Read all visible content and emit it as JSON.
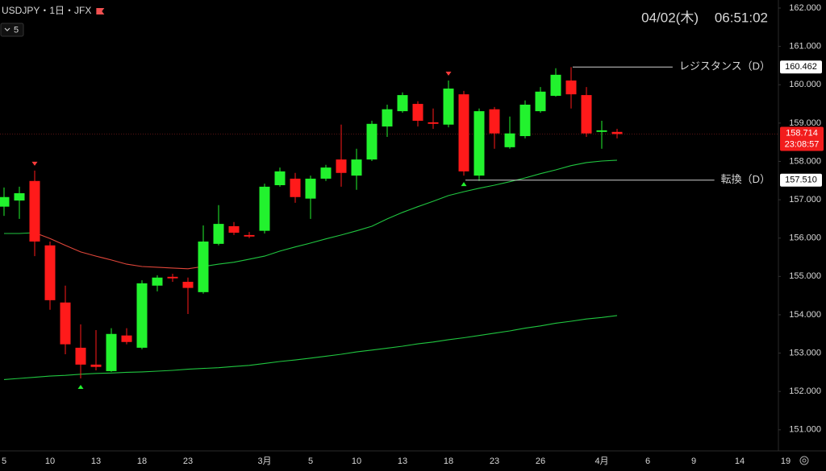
{
  "chart_data": {
    "type": "candlestick",
    "title": "USDJPY・1日・JFX",
    "interval_badge": "5",
    "date": "04/02(木)",
    "time": "06:51:02",
    "categories": [
      "5",
      null,
      null,
      "10",
      null,
      null,
      "13",
      null,
      null,
      "18",
      null,
      null,
      "23",
      null,
      null,
      null,
      null,
      "3月",
      null,
      null,
      "5",
      null,
      null,
      "10",
      null,
      null,
      "13",
      null,
      null,
      "18",
      null,
      null,
      "23",
      null,
      null,
      "26",
      null,
      null,
      null,
      "4月",
      null,
      null,
      "6",
      null,
      null,
      "9",
      null,
      null,
      "14",
      null,
      null,
      "19"
    ],
    "open": [
      156.82,
      156.98,
      157.49,
      155.81,
      154.32,
      153.14,
      152.7,
      152.53,
      153.46,
      153.14,
      154.76,
      154.99,
      154.86,
      154.59,
      155.85,
      156.31,
      156.08,
      156.19,
      157.38,
      157.55,
      157.03,
      157.55,
      158.05,
      157.63,
      158.05,
      158.91,
      159.31,
      159.5,
      159.02,
      158.96,
      159.75,
      157.63,
      159.36,
      158.37,
      158.66,
      159.31,
      159.71,
      160.11,
      159.73,
      158.77,
      158.77,
      null,
      null,
      null,
      null,
      null,
      null,
      null,
      null,
      null,
      null,
      null
    ],
    "high": [
      157.32,
      157.34,
      157.76,
      155.91,
      154.76,
      153.75,
      153.6,
      153.65,
      153.65,
      154.9,
      155.03,
      155.07,
      154.97,
      156.33,
      156.86,
      156.42,
      156.16,
      157.42,
      157.84,
      157.7,
      157.63,
      157.91,
      158.96,
      158.33,
      159.06,
      159.48,
      159.8,
      159.57,
      159.38,
      160.11,
      159.84,
      159.38,
      159.42,
      159.17,
      159.59,
      159.94,
      160.43,
      160.46,
      159.94,
      159.06,
      158.85,
      null,
      null,
      null,
      null,
      null,
      null,
      null,
      null,
      null,
      null,
      null
    ],
    "low": [
      156.58,
      156.5,
      155.53,
      154.13,
      152.97,
      152.34,
      152.55,
      152.51,
      153.23,
      153.1,
      154.61,
      154.86,
      154.02,
      154.55,
      155.81,
      156.08,
      156.0,
      156.12,
      157.34,
      156.92,
      156.5,
      157.49,
      157.34,
      157.26,
      158.01,
      158.64,
      159.27,
      158.91,
      158.85,
      158.89,
      157.63,
      157.49,
      158.33,
      158.33,
      158.6,
      159.27,
      159.69,
      159.38,
      158.64,
      158.33,
      158.6,
      null,
      null,
      null,
      null,
      null,
      null,
      null,
      null,
      null,
      null,
      null
    ],
    "close": [
      157.07,
      157.17,
      155.91,
      154.38,
      153.23,
      152.7,
      152.64,
      153.5,
      153.29,
      154.82,
      154.97,
      154.95,
      154.7,
      155.91,
      156.37,
      156.14,
      156.04,
      157.34,
      157.74,
      157.07,
      157.55,
      157.84,
      157.7,
      158.05,
      158.98,
      159.36,
      159.73,
      159.06,
      158.98,
      159.9,
      157.74,
      159.31,
      158.73,
      158.73,
      159.48,
      159.82,
      160.26,
      159.75,
      158.73,
      158.81,
      158.714,
      null,
      null,
      null,
      null,
      null,
      null,
      null,
      null,
      null,
      null,
      null
    ],
    "up_color": "#22f22e",
    "down_color": "#ff1a1a",
    "series": [
      {
        "color": "#20c640",
        "values": [
          156.12,
          156.12,
          156.14,
          null,
          null,
          null,
          null,
          null,
          null,
          null,
          null,
          null,
          null,
          155.26,
          155.32,
          155.37,
          155.45,
          155.53,
          155.66,
          155.77,
          155.87,
          155.98,
          156.08,
          156.19,
          156.31,
          156.5,
          156.67,
          156.82,
          156.96,
          157.11,
          157.21,
          157.3,
          157.38,
          157.47,
          157.57,
          157.68,
          157.78,
          157.89,
          157.97,
          158.01,
          158.03,
          null,
          null,
          null,
          null,
          null,
          null,
          null,
          null,
          null,
          null,
          null
        ]
      },
      {
        "color": "#e0463a",
        "values": [
          null,
          null,
          156.14,
          155.99,
          155.81,
          155.64,
          155.53,
          155.43,
          155.32,
          155.26,
          155.24,
          155.22,
          155.2,
          155.26,
          null,
          null,
          null,
          null,
          null,
          null,
          null,
          null,
          null,
          null,
          null,
          null,
          null,
          null,
          null,
          null,
          null,
          null,
          null,
          null,
          null,
          null,
          null,
          null,
          null,
          null,
          null,
          null,
          null,
          null,
          null,
          null,
          null,
          null,
          null,
          null,
          null,
          null
        ]
      },
      {
        "color": "#20c640",
        "values": [
          152.31,
          152.34,
          152.37,
          152.4,
          152.42,
          152.45,
          152.47,
          152.48,
          152.5,
          152.51,
          152.53,
          152.55,
          152.58,
          152.6,
          152.62,
          152.65,
          152.68,
          152.73,
          152.78,
          152.82,
          152.87,
          152.92,
          152.97,
          153.03,
          153.08,
          153.13,
          153.18,
          153.24,
          153.29,
          153.35,
          153.4,
          153.46,
          153.52,
          153.58,
          153.65,
          153.71,
          153.78,
          153.83,
          153.89,
          153.93,
          153.98,
          null,
          null,
          null,
          null,
          null,
          null,
          null,
          null,
          null,
          null,
          null
        ]
      }
    ],
    "ylim": [
      150.45,
      162.21
    ],
    "yticks": [
      {
        "value": 151,
        "label": "151.000"
      },
      {
        "value": 152,
        "label": "152.000"
      },
      {
        "value": 153,
        "label": "153.000"
      },
      {
        "value": 154,
        "label": "154.000"
      },
      {
        "value": 155,
        "label": "155.000"
      },
      {
        "value": 156,
        "label": "156.000"
      },
      {
        "value": 157,
        "label": "157.000"
      },
      {
        "value": 158,
        "label": "158.000"
      },
      {
        "value": 159,
        "label": "159.000"
      },
      {
        "value": 160,
        "label": "160.000"
      },
      {
        "value": 161,
        "label": "161.000"
      },
      {
        "value": 162,
        "label": "162.000"
      }
    ],
    "grid": false,
    "levels": [
      {
        "label": "レジスタンス（D）",
        "price": 160.462,
        "from": 37
      },
      {
        "label": "転換（D）",
        "price": {
          "value": 157.51,
          "label": "157.510"
        },
        "from": 30
      }
    ],
    "current_price": 158.714,
    "countdown": "23:08:57",
    "signals": {
      "sell": [
        2,
        29
      ],
      "buy": [
        5,
        30
      ]
    }
  }
}
